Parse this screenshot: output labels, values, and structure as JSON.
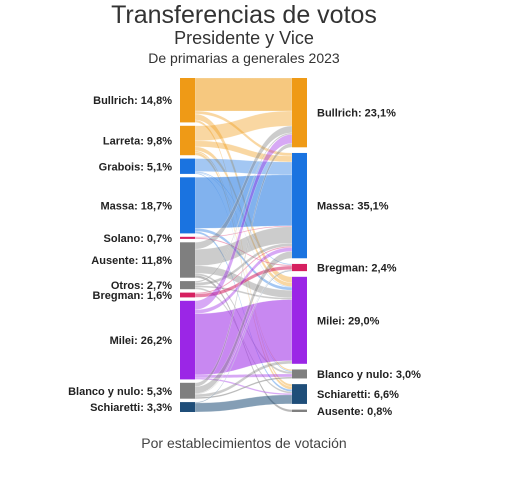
{
  "title": "Transferencias de votos",
  "subtitle": "Presidente y Vice",
  "subsubtitle": "De primarias a generales 2023",
  "footer": "Por establecimientos de votación",
  "chart_data": {
    "type": "sankey",
    "unit": "%",
    "sources": [
      {
        "label": "Bullrich: 14,8%",
        "name": "Bullrich",
        "value": 14.8,
        "color": "#ef9a16"
      },
      {
        "label": "Larreta: 9,8%",
        "name": "Larreta",
        "value": 9.8,
        "color": "#ef9a16"
      },
      {
        "label": "Grabois: 5,1%",
        "name": "Grabois",
        "value": 5.1,
        "color": "#1a73e0"
      },
      {
        "label": "Massa: 18,7%",
        "name": "Massa",
        "value": 18.7,
        "color": "#1a73e0"
      },
      {
        "label": "Solano: 0,7%",
        "name": "Solano",
        "value": 0.7,
        "color": "#d62060"
      },
      {
        "label": "Ausente: 11,8%",
        "name": "Ausente",
        "value": 11.8,
        "color": "#7f7f7f"
      },
      {
        "label": "Otros: 2,7%",
        "name": "Otros",
        "value": 2.7,
        "color": "#7f7f7f"
      },
      {
        "label": "Bregman: 1,6%",
        "name": "Bregman",
        "value": 1.6,
        "color": "#d62060"
      },
      {
        "label": "Milei: 26,2%",
        "name": "Milei",
        "value": 26.2,
        "color": "#9b26e6"
      },
      {
        "label": "Blanco y nulo: 5,3%",
        "name": "Blanco y nulo",
        "value": 5.3,
        "color": "#7f7f7f"
      },
      {
        "label": "Schiaretti: 3,3%",
        "name": "Schiaretti",
        "value": 3.3,
        "color": "#1f4e79"
      }
    ],
    "targets": [
      {
        "label": "Bullrich: 23,1%",
        "name": "Bullrich",
        "value": 23.1,
        "color": "#ef9a16"
      },
      {
        "label": "Massa: 35,1%",
        "name": "Massa",
        "value": 35.1,
        "color": "#1a73e0"
      },
      {
        "label": "Bregman: 2,4%",
        "name": "Bregman",
        "value": 2.4,
        "color": "#d62060"
      },
      {
        "label": "Milei: 29,0%",
        "name": "Milei",
        "value": 29.0,
        "color": "#9b26e6"
      },
      {
        "label": "Blanco y nulo: 3,0%",
        "name": "Blanco y nulo",
        "value": 3.0,
        "color": "#7f7f7f"
      },
      {
        "label": "Schiaretti: 6,6%",
        "name": "Schiaretti",
        "value": 6.6,
        "color": "#1f4e79"
      },
      {
        "label": "Ausente: 0,8%",
        "name": "Ausente",
        "value": 0.8,
        "color": "#7f7f7f"
      }
    ],
    "flows": [
      {
        "source": "Bullrich",
        "target": "Bullrich",
        "value": 11.0
      },
      {
        "source": "Bullrich",
        "target": "Massa",
        "value": 1.0
      },
      {
        "source": "Bullrich",
        "target": "Milei",
        "value": 2.0
      },
      {
        "source": "Bullrich",
        "target": "Schiaretti",
        "value": 0.8
      },
      {
        "source": "Larreta",
        "target": "Bullrich",
        "value": 5.0
      },
      {
        "source": "Larreta",
        "target": "Massa",
        "value": 2.0
      },
      {
        "source": "Larreta",
        "target": "Milei",
        "value": 1.3
      },
      {
        "source": "Larreta",
        "target": "Schiaretti",
        "value": 1.0
      },
      {
        "source": "Larreta",
        "target": "Blanco y nulo",
        "value": 0.5
      },
      {
        "source": "Grabois",
        "target": "Massa",
        "value": 4.3
      },
      {
        "source": "Grabois",
        "target": "Bregman",
        "value": 0.3
      },
      {
        "source": "Grabois",
        "target": "Milei",
        "value": 0.2
      },
      {
        "source": "Grabois",
        "target": "Blanco y nulo",
        "value": 0.3
      },
      {
        "source": "Massa",
        "target": "Massa",
        "value": 17.0
      },
      {
        "source": "Massa",
        "target": "Milei",
        "value": 1.0
      },
      {
        "source": "Massa",
        "target": "Schiaretti",
        "value": 0.7
      },
      {
        "source": "Solano",
        "target": "Bregman",
        "value": 0.4
      },
      {
        "source": "Solano",
        "target": "Massa",
        "value": 0.3
      },
      {
        "source": "Ausente",
        "target": "Massa",
        "value": 5.5
      },
      {
        "source": "Ausente",
        "target": "Bullrich",
        "value": 2.3
      },
      {
        "source": "Ausente",
        "target": "Milei",
        "value": 2.5
      },
      {
        "source": "Ausente",
        "target": "Blanco y nulo",
        "value": 0.7
      },
      {
        "source": "Ausente",
        "target": "Ausente",
        "value": 0.8
      },
      {
        "source": "Otros",
        "target": "Massa",
        "value": 1.0
      },
      {
        "source": "Otros",
        "target": "Bullrich",
        "value": 0.5
      },
      {
        "source": "Otros",
        "target": "Milei",
        "value": 0.6
      },
      {
        "source": "Otros",
        "target": "Schiaretti",
        "value": 0.6
      },
      {
        "source": "Bregman",
        "target": "Bregman",
        "value": 1.2
      },
      {
        "source": "Bregman",
        "target": "Massa",
        "value": 0.4
      },
      {
        "source": "Milei",
        "target": "Milei",
        "value": 20.4
      },
      {
        "source": "Milei",
        "target": "Bullrich",
        "value": 3.0
      },
      {
        "source": "Milei",
        "target": "Massa",
        "value": 1.3
      },
      {
        "source": "Milei",
        "target": "Schiaretti",
        "value": 0.5
      },
      {
        "source": "Milei",
        "target": "Blanco y nulo",
        "value": 1.0
      },
      {
        "source": "Blanco y nulo",
        "target": "Massa",
        "value": 2.3
      },
      {
        "source": "Blanco y nulo",
        "target": "Bullrich",
        "value": 1.3
      },
      {
        "source": "Blanco y nulo",
        "target": "Milei",
        "value": 1.0
      },
      {
        "source": "Blanco y nulo",
        "target": "Blanco y nulo",
        "value": 0.5
      },
      {
        "source": "Blanco y nulo",
        "target": "Bregman",
        "value": 0.2
      },
      {
        "source": "Schiaretti",
        "target": "Schiaretti",
        "value": 3.0
      },
      {
        "source": "Schiaretti",
        "target": "Bregman",
        "value": 0.3
      }
    ]
  }
}
